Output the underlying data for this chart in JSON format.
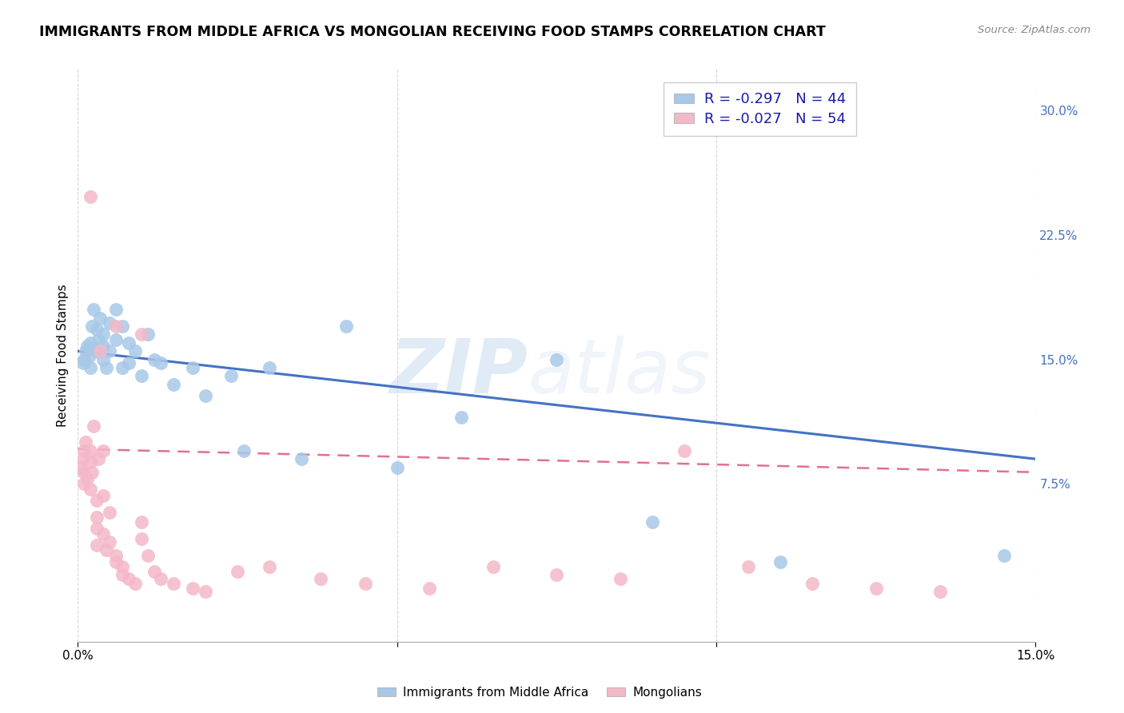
{
  "title": "IMMIGRANTS FROM MIDDLE AFRICA VS MONGOLIAN RECEIVING FOOD STAMPS CORRELATION CHART",
  "source": "Source: ZipAtlas.com",
  "ylabel": "Receiving Food Stamps",
  "ytick_labels": [
    "7.5%",
    "15.0%",
    "22.5%",
    "30.0%"
  ],
  "ytick_values": [
    0.075,
    0.15,
    0.225,
    0.3
  ],
  "xlim": [
    0.0,
    0.15
  ],
  "ylim": [
    -0.02,
    0.325
  ],
  "blue_color": "#a8c8e8",
  "pink_color": "#f4b8c8",
  "blue_line_color": "#4472c4",
  "pink_line_color": "#e07090",
  "watermark_zip": "ZIP",
  "watermark_atlas": "atlas",
  "blue_R": -0.297,
  "blue_N": 44,
  "pink_R": -0.027,
  "pink_N": 54,
  "title_fontsize": 12.5,
  "axis_label_fontsize": 11,
  "tick_fontsize": 11,
  "legend_fontsize": 13,
  "blue_points_x": [
    0.0008,
    0.001,
    0.0012,
    0.0015,
    0.0018,
    0.002,
    0.002,
    0.0022,
    0.0025,
    0.003,
    0.003,
    0.0032,
    0.0035,
    0.004,
    0.004,
    0.004,
    0.0045,
    0.005,
    0.005,
    0.006,
    0.006,
    0.007,
    0.007,
    0.008,
    0.008,
    0.009,
    0.01,
    0.011,
    0.012,
    0.013,
    0.015,
    0.018,
    0.02,
    0.024,
    0.026,
    0.03,
    0.035,
    0.042,
    0.05,
    0.06,
    0.075,
    0.09,
    0.11,
    0.145
  ],
  "blue_points_y": [
    0.148,
    0.15,
    0.155,
    0.158,
    0.152,
    0.16,
    0.145,
    0.17,
    0.18,
    0.168,
    0.155,
    0.162,
    0.175,
    0.15,
    0.158,
    0.165,
    0.145,
    0.172,
    0.155,
    0.18,
    0.162,
    0.17,
    0.145,
    0.16,
    0.148,
    0.155,
    0.14,
    0.165,
    0.15,
    0.148,
    0.135,
    0.145,
    0.128,
    0.14,
    0.095,
    0.145,
    0.09,
    0.17,
    0.085,
    0.115,
    0.15,
    0.052,
    0.028,
    0.032
  ],
  "pink_points_x": [
    0.0005,
    0.0008,
    0.001,
    0.001,
    0.001,
    0.0012,
    0.0015,
    0.002,
    0.002,
    0.002,
    0.0022,
    0.0025,
    0.003,
    0.003,
    0.003,
    0.003,
    0.0032,
    0.004,
    0.004,
    0.004,
    0.0045,
    0.005,
    0.005,
    0.006,
    0.006,
    0.007,
    0.007,
    0.008,
    0.009,
    0.01,
    0.01,
    0.011,
    0.012,
    0.013,
    0.015,
    0.018,
    0.02,
    0.025,
    0.03,
    0.038,
    0.045,
    0.055,
    0.065,
    0.075,
    0.085,
    0.095,
    0.105,
    0.115,
    0.125,
    0.135,
    0.01,
    0.0035,
    0.006,
    0.002
  ],
  "pink_points_y": [
    0.085,
    0.09,
    0.095,
    0.075,
    0.082,
    0.1,
    0.078,
    0.088,
    0.095,
    0.072,
    0.082,
    0.11,
    0.055,
    0.048,
    0.065,
    0.038,
    0.09,
    0.095,
    0.068,
    0.045,
    0.035,
    0.058,
    0.04,
    0.032,
    0.028,
    0.025,
    0.02,
    0.018,
    0.015,
    0.052,
    0.042,
    0.032,
    0.022,
    0.018,
    0.015,
    0.012,
    0.01,
    0.022,
    0.025,
    0.018,
    0.015,
    0.012,
    0.025,
    0.02,
    0.018,
    0.095,
    0.025,
    0.015,
    0.012,
    0.01,
    0.165,
    0.155,
    0.17,
    0.248
  ]
}
